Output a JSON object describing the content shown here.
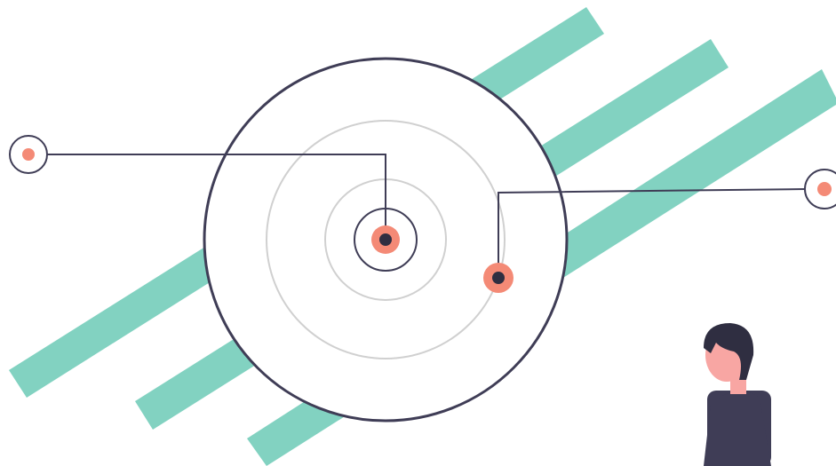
{
  "illustration": {
    "stripes": {
      "count": 3
    },
    "target": {
      "ring_count": 3
    },
    "pins": {
      "count": 4
    },
    "person": {
      "present": true
    }
  },
  "colors": {
    "background": "#ffffff",
    "stripe": "#82D2C1",
    "outline": "#3F3D56",
    "faint_ring": "#D0D0D0",
    "dot_accent": "#F48A76",
    "dot_core": "#2F2E41",
    "skin": "#F8A6A3",
    "hair": "#2F2E41",
    "shirt": "#3F3D56"
  }
}
